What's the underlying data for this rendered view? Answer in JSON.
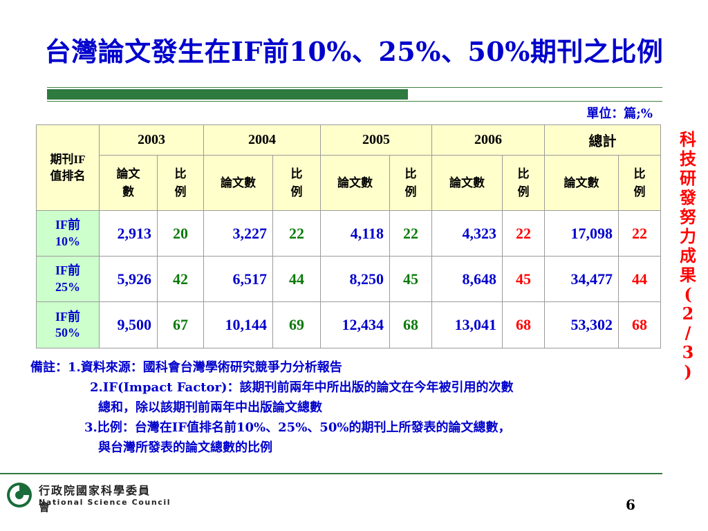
{
  "title": "台灣論文發生在IF前10%、25%、50%期刊之比例",
  "unit": "單位：篇;%",
  "table": {
    "corner": "期刊IF\n值排名",
    "years": [
      "2003",
      "2004",
      "2005",
      "2006",
      "總計"
    ],
    "sub_first": "論文\n數",
    "sub_count": "論文數",
    "sub_ratio": "比\n例",
    "rows": [
      {
        "rank": "IF前\n10%",
        "cells": [
          "2,913",
          "20",
          "3,227",
          "22",
          "4,118",
          "22",
          "4,323",
          "22",
          "17,098",
          "22"
        ]
      },
      {
        "rank": "IF前\n25%",
        "cells": [
          "5,926",
          "42",
          "6,517",
          "44",
          "8,250",
          "45",
          "8,648",
          "45",
          "34,477",
          "44"
        ]
      },
      {
        "rank": "IF前\n50%",
        "cells": [
          "9,500",
          "67",
          "10,144",
          "69",
          "12,434",
          "68",
          "13,041",
          "68",
          "53,302",
          "68"
        ]
      }
    ]
  },
  "side_label": [
    "科",
    "技",
    "研",
    "發",
    "努",
    "力",
    "成",
    "果",
    "(",
    "2",
    "/",
    "3",
    ")"
  ],
  "notes": {
    "line1": "備註：1.資料來源：國科會台灣學術研究競爭力分析報告",
    "line2": "2.IF(Impact Factor)：該期刊前兩年中所出版的論文在今年被引用的次數",
    "line2b": "總和，除以該期刊前兩年中出版論文總數",
    "line3": "3.比例：台灣在IF值排名前10%、25%、50%的期刊上所發表的論文總數，",
    "line3b": "與台灣所發表的論文總數的比例"
  },
  "logo": {
    "cn": "行政院國家科學委員會",
    "en": "National Science Council"
  },
  "page_number": "6",
  "colors": {
    "title": "#0000cc",
    "header_bg": "#ffffcc",
    "rank_bg": "#ccffcc",
    "count": "#0000cc",
    "ratio": "#0a7a0a",
    "highlight": "#ff0000",
    "accent_rule": "#2f7a3f"
  }
}
